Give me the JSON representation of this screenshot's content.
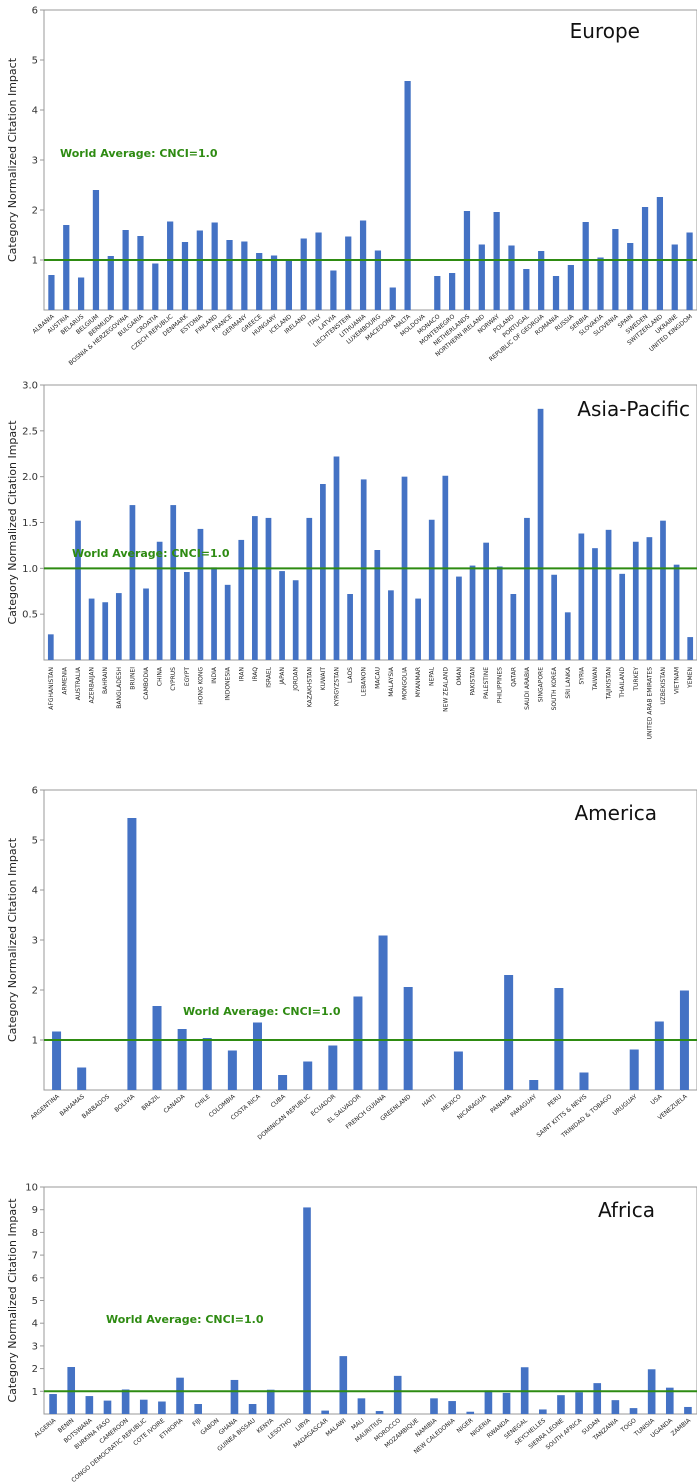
{
  "colors": {
    "bar": "#4472c4",
    "reference_line": "#2e8b12",
    "axis": "#999999"
  },
  "chart_data": [
    {
      "type": "bar",
      "title": "Europe",
      "ylabel": "Category Normalized Citation Impact",
      "ylim": [
        0,
        6
      ],
      "yticks": [
        "1",
        "2",
        "3",
        "4",
        "5",
        "6"
      ],
      "reference_line": {
        "value": 1.0,
        "label": "World Average: CNCI=1.0"
      },
      "categories": [
        "ALBANIA",
        "AUSTRIA",
        "BELARUS",
        "BELGIUM",
        "BERMUDA",
        "BOSNIA & HERZEGOVINA",
        "BULGARIA",
        "CROATIA",
        "CZECH REPUBLIC",
        "DENMARK",
        "ESTONIA",
        "FINLAND",
        "FRANCE",
        "GERMANY",
        "GREECE",
        "HUNGARY",
        "ICELAND",
        "IRELAND",
        "ITALY",
        "LATVIA",
        "LIECHTENSTEIN",
        "LITHUANIA",
        "LUXEMBOURG",
        "MACEDONIA",
        "MALTA",
        "MOLDOVA",
        "MONACO",
        "MONTENEGRO",
        "NETHERLANDS",
        "NORTHERN IRELAND",
        "NORWAY",
        "POLAND",
        "PORTUGAL",
        "REPUBLIC OF GEORGIA",
        "ROMANIA",
        "RUSSIA",
        "SERBIA",
        "SLOVAKIA",
        "SLOVENIA",
        "SPAIN",
        "SWEDEN",
        "SWITZERLAND",
        "UKRAINE",
        "UNITED KINGDOM"
      ],
      "values": [
        0.7,
        1.7,
        0.65,
        2.4,
        1.08,
        1.6,
        1.48,
        0.93,
        1.77,
        1.36,
        1.59,
        1.75,
        1.4,
        1.37,
        1.14,
        1.09,
        1.02,
        1.43,
        1.55,
        0.79,
        1.47,
        1.79,
        1.19,
        0.45,
        4.58,
        0.0,
        0.68,
        0.74,
        1.98,
        1.31,
        1.96,
        1.29,
        0.82,
        1.18,
        0.68,
        0.9,
        1.76,
        1.05,
        1.62,
        1.34,
        2.06,
        2.26,
        1.31,
        1.55
      ]
    },
    {
      "type": "bar",
      "title": "Asia-Pacific",
      "ylabel": "Category Normalized Citation Impact",
      "ylim": [
        0,
        3.0
      ],
      "yticks": [
        "0.5",
        "1.0",
        "1.5",
        "2.0",
        "2.5",
        "3.0"
      ],
      "reference_line": {
        "value": 1.0,
        "label": "World Average: CNCI=1.0"
      },
      "categories": [
        "AFGHANISTAN",
        "ARMENIA",
        "AUSTRALIA",
        "AZERBAIJAN",
        "BAHRAIN",
        "BANGLADESH",
        "BRUNEI",
        "CAMBODIA",
        "CHINA",
        "CYPRUS",
        "EGYPT",
        "HONG KONG",
        "INDIA",
        "INDONESIA",
        "IRAN",
        "IRAQ",
        "ISRAEL",
        "JAPAN",
        "JORDAN",
        "KAZAKHSTAN",
        "KUWAIT",
        "KYRGYZSTAN",
        "LAOS",
        "LEBANON",
        "MACAU",
        "MALAYSIA",
        "MONGOLIA",
        "MYANMAR",
        "NEPAL",
        "NEW ZEALAND",
        "OMAN",
        "PAKISTAN",
        "PALESTINE",
        "PHILIPPINES",
        "QATAR",
        "SAUDI ARABIA",
        "SINGAPORE",
        "SOUTH KOREA",
        "SRI LANKA",
        "SYRIA",
        "TAIWAN",
        "TAJIKISTAN",
        "THAILAND",
        "TURKEY",
        "UNITED ARAB EMIRATES",
        "UZBEKISTAN",
        "VIETNAM",
        "YEMEN"
      ],
      "values": [
        0.28,
        0.0,
        1.52,
        0.67,
        0.63,
        0.73,
        1.69,
        0.78,
        1.29,
        1.69,
        0.96,
        1.43,
        1.01,
        0.82,
        1.31,
        1.57,
        1.55,
        0.97,
        0.87,
        1.55,
        1.92,
        2.22,
        0.72,
        1.97,
        1.2,
        0.76,
        2.0,
        0.67,
        1.53,
        2.01,
        0.91,
        1.03,
        1.28,
        1.02,
        0.72,
        1.55,
        2.74,
        0.93,
        0.52,
        1.38,
        1.22,
        1.42,
        0.94,
        1.29,
        1.34,
        1.52,
        1.04,
        0.25
      ]
    },
    {
      "type": "bar",
      "title": "America",
      "ylabel": "Category Normalized Citation Impact",
      "ylim": [
        0,
        6
      ],
      "yticks": [
        "1",
        "2",
        "3",
        "4",
        "5",
        "6"
      ],
      "reference_line": {
        "value": 1.0,
        "label": "World Average: CNCI=1.0"
      },
      "categories": [
        "ARGENTINA",
        "BAHAMAS",
        "BARBADOS",
        "BOLIVIA",
        "BRAZIL",
        "CANADA",
        "CHILE",
        "COLOMBIA",
        "COSTA RICA",
        "CUBA",
        "DOMINICAN REPUBLIC",
        "ECUADOR",
        "EL SALVADOR",
        "FRENCH GUIANA",
        "GREENLAND",
        "HAITI",
        "MEXICO",
        "NICARAGUA",
        "PANAMA",
        "PARAGUAY",
        "PERU",
        "SAINT KITTS & NEVIS",
        "TRINIDAD & TOBAGO",
        "URUGUAY",
        "USA",
        "VENEZUELA"
      ],
      "values": [
        1.17,
        0.45,
        0.0,
        5.44,
        1.68,
        1.22,
        1.04,
        0.79,
        1.35,
        0.3,
        0.57,
        0.89,
        1.87,
        3.09,
        2.06,
        0.0,
        0.77,
        0.0,
        2.3,
        0.2,
        2.04,
        0.35,
        0.0,
        0.81,
        1.37,
        1.99
      ]
    },
    {
      "type": "bar",
      "title": "Africa",
      "ylabel": "Category Normalized Citation Impact",
      "ylim": [
        0,
        10
      ],
      "yticks": [
        "1",
        "2",
        "3",
        "4",
        "5",
        "6",
        "7",
        "8",
        "9",
        "10"
      ],
      "reference_line": {
        "value": 1.0,
        "label": "World Average: CNCI=1.0"
      },
      "categories": [
        "ALGERIA",
        "BENIN",
        "BOTSWANA",
        "BURKINA FASO",
        "CAMEROON",
        "CONGO DEMOCRATIC REPUBLIC",
        "COTE IVOIRE",
        "ETHIOPIA",
        "FIJI",
        "GABON",
        "GHANA",
        "GUINEA BISSAU",
        "KENYA",
        "LESOTHO",
        "LIBYA",
        "MADAGASCAR",
        "MALAWI",
        "MALI",
        "MAURITIUS",
        "MOROCCO",
        "MOZAMBIQUE",
        "NAMIBIA",
        "NEW CALEDONIA",
        "NIGER",
        "NIGERIA",
        "RWANDA",
        "SENEGAL",
        "SEYCHELLES",
        "SIERRA LEONE",
        "SOUTH AFRICA",
        "SUDAN",
        "TANZANIA",
        "TOGO",
        "TUNISIA",
        "UGANDA",
        "ZAMBIA"
      ],
      "values": [
        0.88,
        2.07,
        0.79,
        0.59,
        1.08,
        0.63,
        0.55,
        1.6,
        0.44,
        0.0,
        1.5,
        0.44,
        1.07,
        0.0,
        9.1,
        0.15,
        2.55,
        0.69,
        0.13,
        1.68,
        0.0,
        0.69,
        0.57,
        0.1,
        1.04,
        0.93,
        2.06,
        0.2,
        0.83,
        0.96,
        1.36,
        0.61,
        0.26,
        1.97,
        1.16,
        0.31
      ]
    }
  ]
}
